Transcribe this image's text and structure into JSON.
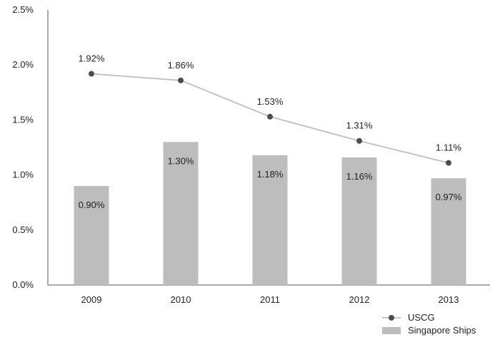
{
  "chart_data": {
    "type": "bar",
    "categories": [
      "2009",
      "2010",
      "2011",
      "2012",
      "2013"
    ],
    "series": [
      {
        "name": "Singapore Ships",
        "type": "bar",
        "values": [
          0.9,
          1.3,
          1.18,
          1.16,
          0.97
        ],
        "labels": [
          "0.90%",
          "1.30%",
          "1.18%",
          "1.16%",
          "0.97%"
        ],
        "color": "#bdbdbd"
      },
      {
        "name": "USCG",
        "type": "line",
        "values": [
          1.92,
          1.86,
          1.53,
          1.31,
          1.11
        ],
        "labels": [
          "1.92%",
          "1.86%",
          "1.53%",
          "1.31%",
          "1.11%"
        ],
        "line_color": "#c4c4c4",
        "marker_color": "#4d4d4d"
      }
    ],
    "yticks": [
      "0.0%",
      "0.5%",
      "1.0%",
      "1.5%",
      "2.0%",
      "2.5%"
    ],
    "ylim": [
      0,
      2.5
    ],
    "title": "",
    "xlabel": "",
    "ylabel": "",
    "grid": false,
    "legend_position": "bottom-right"
  }
}
